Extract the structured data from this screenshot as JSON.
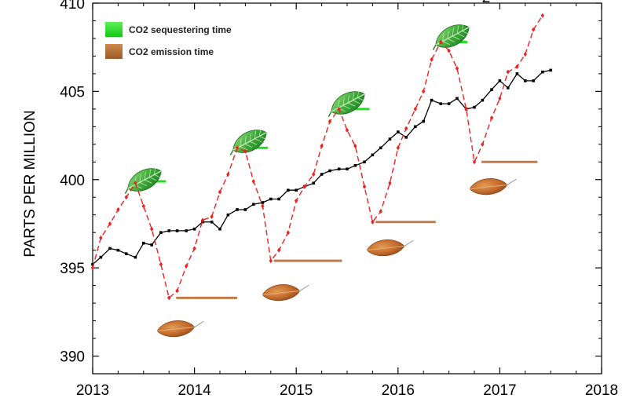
{
  "chart_data": {
    "type": "line",
    "title_fragment": "2",
    "xlabel": "",
    "ylabel": "PARTS PER MILLION",
    "xlim": [
      2013,
      2018
    ],
    "ylim": [
      389,
      410
    ],
    "x_ticks": [
      "2013",
      "2014",
      "2015",
      "2016",
      "2017",
      "2018"
    ],
    "y_ticks": [
      "390",
      "395",
      "400",
      "405",
      "410"
    ],
    "grid": false,
    "legend_position": "top-left",
    "legend": [
      {
        "label": "CO2 sequestering time",
        "color": "#22dd22"
      },
      {
        "label": "CO2 emission time",
        "color": "#b87333"
      }
    ],
    "series": [
      {
        "color": "#000000",
        "style": "solid",
        "marker": "square",
        "points": [
          [
            2013.0,
            395.2
          ],
          [
            2013.08,
            395.6
          ],
          [
            2013.17,
            396.1
          ],
          [
            2013.25,
            396.0
          ],
          [
            2013.33,
            395.8
          ],
          [
            2013.42,
            395.6
          ],
          [
            2013.5,
            396.4
          ],
          [
            2013.58,
            396.3
          ],
          [
            2013.67,
            397.0
          ],
          [
            2013.75,
            397.1
          ],
          [
            2013.83,
            397.1
          ],
          [
            2013.92,
            397.1
          ],
          [
            2014.0,
            397.2
          ],
          [
            2014.08,
            397.6
          ],
          [
            2014.17,
            397.6
          ],
          [
            2014.25,
            397.2
          ],
          [
            2014.33,
            398.0
          ],
          [
            2014.42,
            398.3
          ],
          [
            2014.5,
            398.3
          ],
          [
            2014.58,
            398.6
          ],
          [
            2014.67,
            398.7
          ],
          [
            2014.75,
            398.9
          ],
          [
            2014.83,
            398.9
          ],
          [
            2014.92,
            399.4
          ],
          [
            2015.0,
            399.4
          ],
          [
            2015.08,
            399.6
          ],
          [
            2015.17,
            399.8
          ],
          [
            2015.25,
            400.3
          ],
          [
            2015.33,
            400.5
          ],
          [
            2015.42,
            400.6
          ],
          [
            2015.5,
            400.6
          ],
          [
            2015.58,
            400.8
          ],
          [
            2015.67,
            401.0
          ],
          [
            2015.75,
            401.4
          ],
          [
            2015.83,
            401.8
          ],
          [
            2015.92,
            402.3
          ],
          [
            2016.0,
            402.7
          ],
          [
            2016.08,
            402.4
          ],
          [
            2016.17,
            403.0
          ],
          [
            2016.25,
            403.3
          ],
          [
            2016.33,
            404.5
          ],
          [
            2016.42,
            404.3
          ],
          [
            2016.5,
            404.3
          ],
          [
            2016.58,
            404.6
          ],
          [
            2016.67,
            404.0
          ],
          [
            2016.75,
            404.1
          ],
          [
            2016.83,
            404.5
          ],
          [
            2016.92,
            405.1
          ],
          [
            2017.0,
            405.6
          ],
          [
            2017.08,
            405.2
          ],
          [
            2017.17,
            406.0
          ],
          [
            2017.25,
            405.6
          ],
          [
            2017.33,
            405.6
          ],
          [
            2017.42,
            406.1
          ],
          [
            2017.5,
            406.2
          ]
        ]
      },
      {
        "color": "#ee2222",
        "style": "dashed",
        "marker": "diamond",
        "points": [
          [
            2013.0,
            395.0
          ],
          [
            2013.08,
            396.7
          ],
          [
            2013.17,
            397.5
          ],
          [
            2013.25,
            398.3
          ],
          [
            2013.33,
            399.0
          ],
          [
            2013.42,
            399.8
          ],
          [
            2013.5,
            398.5
          ],
          [
            2013.58,
            397.2
          ],
          [
            2013.67,
            395.2
          ],
          [
            2013.75,
            393.3
          ],
          [
            2013.83,
            393.7
          ],
          [
            2013.92,
            395.1
          ],
          [
            2014.0,
            396.1
          ],
          [
            2014.08,
            397.7
          ],
          [
            2014.17,
            397.9
          ],
          [
            2014.25,
            399.3
          ],
          [
            2014.33,
            400.3
          ],
          [
            2014.42,
            401.8
          ],
          [
            2014.5,
            401.6
          ],
          [
            2014.58,
            399.9
          ],
          [
            2014.67,
            398.5
          ],
          [
            2014.75,
            395.4
          ],
          [
            2014.83,
            396.0
          ],
          [
            2014.92,
            397.0
          ],
          [
            2015.0,
            398.8
          ],
          [
            2015.08,
            399.6
          ],
          [
            2015.17,
            400.3
          ],
          [
            2015.25,
            401.9
          ],
          [
            2015.33,
            403.3
          ],
          [
            2015.42,
            404.0
          ],
          [
            2015.5,
            402.8
          ],
          [
            2015.58,
            401.9
          ],
          [
            2015.67,
            399.6
          ],
          [
            2015.75,
            397.6
          ],
          [
            2015.83,
            398.2
          ],
          [
            2015.92,
            399.8
          ],
          [
            2016.0,
            401.8
          ],
          [
            2016.08,
            402.9
          ],
          [
            2016.17,
            404.0
          ],
          [
            2016.25,
            405.0
          ],
          [
            2016.33,
            406.8
          ],
          [
            2016.42,
            407.8
          ],
          [
            2016.5,
            407.3
          ],
          [
            2016.58,
            406.3
          ],
          [
            2016.67,
            404.0
          ],
          [
            2016.75,
            401.0
          ],
          [
            2016.83,
            402.0
          ],
          [
            2016.92,
            403.5
          ],
          [
            2017.0,
            404.6
          ],
          [
            2017.08,
            406.1
          ],
          [
            2017.17,
            406.4
          ],
          [
            2017.25,
            407.1
          ],
          [
            2017.33,
            408.5
          ],
          [
            2017.42,
            409.3
          ]
        ]
      }
    ],
    "annotations": {
      "sequestering_markers": [
        {
          "x0": 2013.37,
          "x1": 2013.72,
          "y": 399.9
        },
        {
          "x0": 2014.42,
          "x1": 2014.72,
          "y": 401.8
        },
        {
          "x0": 2015.42,
          "x1": 2015.72,
          "y": 404.0
        },
        {
          "x0": 2016.42,
          "x1": 2016.68,
          "y": 407.8
        }
      ],
      "emission_markers": [
        {
          "x0": 2013.82,
          "x1": 2014.42,
          "y": 393.3
        },
        {
          "x0": 2014.78,
          "x1": 2015.45,
          "y": 395.4
        },
        {
          "x0": 2015.78,
          "x1": 2016.37,
          "y": 397.6
        },
        {
          "x0": 2016.82,
          "x1": 2017.37,
          "y": 401.0
        }
      ]
    }
  }
}
